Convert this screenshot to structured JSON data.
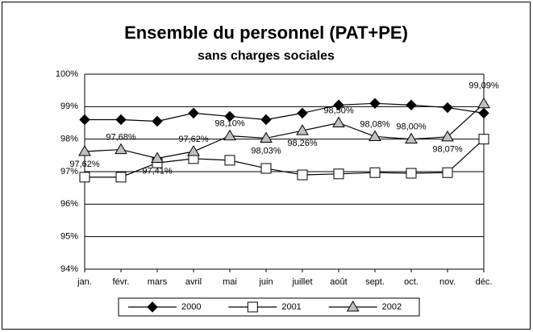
{
  "chart_data": {
    "type": "line",
    "title": "Ensemble du personnel (PAT+PE)",
    "subtitle": "sans charges sociales",
    "categories": [
      "jan.",
      "févr.",
      "mars",
      "avril",
      "mai",
      "juin",
      "juillet",
      "août",
      "sept.",
      "oct.",
      "nov.",
      "déc."
    ],
    "series": [
      {
        "name": "2000",
        "color": "#000000",
        "marker": "diamond",
        "values": [
          98.6,
          98.6,
          98.55,
          98.8,
          98.7,
          98.6,
          98.8,
          99.05,
          99.1,
          99.05,
          98.97,
          98.8
        ]
      },
      {
        "name": "2001",
        "color": "#ffffff",
        "marker": "square",
        "values": [
          96.83,
          96.83,
          97.27,
          97.4,
          97.35,
          97.1,
          96.9,
          96.93,
          96.97,
          96.95,
          96.97,
          98.0
        ]
      },
      {
        "name": "2002",
        "color": "#c0c0c0",
        "marker": "triangle",
        "values": [
          97.62,
          97.68,
          97.41,
          97.62,
          98.1,
          98.03,
          98.26,
          98.5,
          98.08,
          98.0,
          98.07,
          99.09
        ],
        "value_labels": [
          "97,62%",
          "97,68%",
          "97,41%",
          "97,62%",
          "98,10%",
          "98,03%",
          "98,26%",
          "98,50%",
          "98,08%",
          "98,00%",
          "98,07%",
          "99,09%"
        ]
      }
    ],
    "ylim": [
      94,
      100
    ],
    "yticks": [
      {
        "value": 94,
        "label": "94%"
      },
      {
        "value": 95,
        "label": "95%"
      },
      {
        "value": 96,
        "label": "96%"
      },
      {
        "value": 97,
        "label": "97%"
      },
      {
        "value": 98,
        "label": "98%"
      },
      {
        "value": 99,
        "label": "99%"
      },
      {
        "value": 100,
        "label": "100%"
      }
    ],
    "grid": true,
    "legend": "bottom"
  }
}
